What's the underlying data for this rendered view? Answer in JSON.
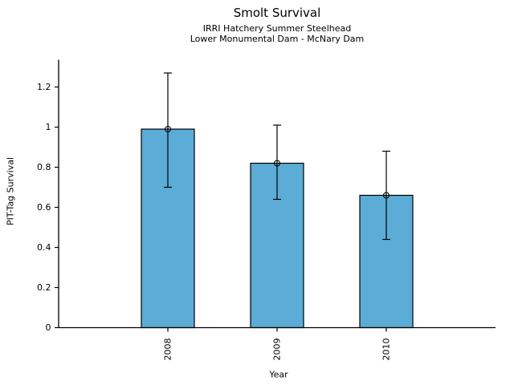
{
  "figure": {
    "title": "Smolt Survival",
    "subtitle1": "IRRI Hatchery Summer Steelhead",
    "subtitle2": "Lower Monumental Dam - McNary Dam"
  },
  "chart_data": {
    "type": "bar",
    "title": "Smolt Survival",
    "subtitle": [
      "IRRI Hatchery Summer Steelhead",
      "Lower Monumental Dam - McNary Dam"
    ],
    "xlabel": "Year",
    "ylabel": "PIT-Tag Survival",
    "categories": [
      "2008",
      "2009",
      "2010"
    ],
    "series": [
      {
        "name": "PIT-Tag Survival",
        "values": [
          0.99,
          0.82,
          0.66
        ]
      }
    ],
    "error_bars": {
      "low": [
        0.7,
        0.64,
        0.44
      ],
      "high": [
        1.27,
        1.01,
        0.88
      ]
    },
    "yticks": [
      0,
      0.2,
      0.4,
      0.6,
      0.8,
      1,
      1.2
    ],
    "ytick_labels": [
      "0",
      "0.2",
      "0.4",
      "0.6",
      "0.8",
      "1",
      "1.2"
    ],
    "ylim": [
      0,
      1.336
    ],
    "grid": false,
    "legend": "none",
    "bar_color": "#5BACD6",
    "bar_edge_color": "#000000",
    "error_color": "#000000",
    "point_marker": "open-circle"
  }
}
